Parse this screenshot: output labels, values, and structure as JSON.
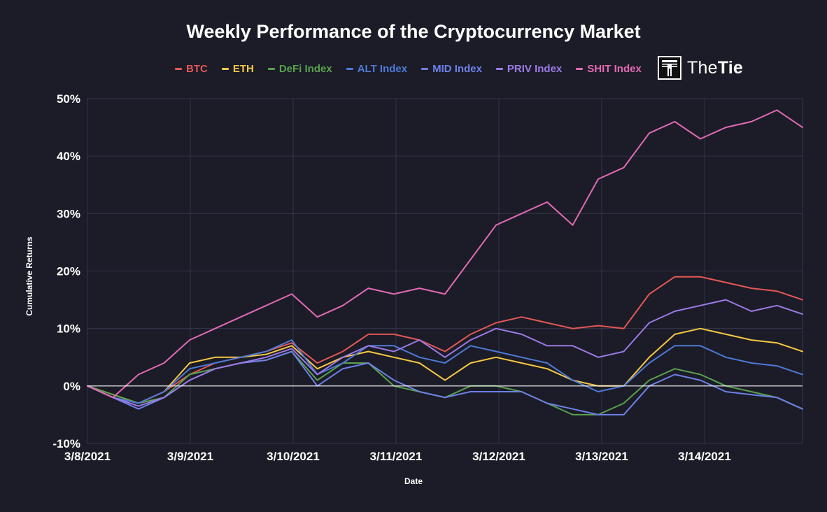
{
  "chart_data": {
    "type": "line",
    "title": "Weekly Performance of the Cryptocurrency Market",
    "xlabel": "Date",
    "ylabel": "Cumulative Returns",
    "x_ticks": [
      "3/8/2021",
      "3/9/2021",
      "3/10/2021",
      "3/11/2021",
      "3/12/2021",
      "3/13/2021",
      "3/14/2021"
    ],
    "x_range": [
      "3/8/2021",
      "3/14/2021 22:00"
    ],
    "y_ticks": [
      "-10%",
      "0%",
      "10%",
      "20%",
      "30%",
      "40%",
      "50%"
    ],
    "ylim": [
      -10,
      50
    ],
    "y_unit": "%",
    "grid": true,
    "zero_line": true,
    "legend_position": "top",
    "x": [
      "3/8 00:00",
      "3/8 06:00",
      "3/8 12:00",
      "3/8 18:00",
      "3/9 00:00",
      "3/9 06:00",
      "3/9 12:00",
      "3/9 18:00",
      "3/10 00:00",
      "3/10 06:00",
      "3/10 12:00",
      "3/10 18:00",
      "3/11 00:00",
      "3/11 06:00",
      "3/11 12:00",
      "3/11 18:00",
      "3/12 00:00",
      "3/12 06:00",
      "3/12 12:00",
      "3/12 18:00",
      "3/13 00:00",
      "3/13 06:00",
      "3/13 12:00",
      "3/13 18:00",
      "3/14 00:00",
      "3/14 06:00",
      "3/14 12:00",
      "3/14 18:00",
      "3/14 22:00"
    ],
    "series": [
      {
        "name": "BTC",
        "color": "#e45756",
        "values": [
          0,
          -2,
          -3,
          -1,
          2,
          4,
          5,
          6,
          7.5,
          4,
          6,
          9,
          9,
          8,
          6,
          9,
          11,
          12,
          11,
          10,
          10.5,
          10,
          16,
          19,
          19,
          18,
          17,
          16.5,
          15
        ]
      },
      {
        "name": "ETH",
        "color": "#f6c744",
        "values": [
          0,
          -1.5,
          -3,
          -1,
          4,
          5,
          5,
          5.5,
          7,
          3,
          5,
          6,
          5,
          4,
          1,
          4,
          5,
          4,
          3,
          1,
          0,
          0,
          5,
          9,
          10,
          9,
          8,
          7.5,
          6
        ]
      },
      {
        "name": "DeFi Index",
        "color": "#59a14f",
        "values": [
          0,
          -1.5,
          -3,
          -2,
          2,
          3,
          4,
          4.5,
          6,
          1,
          4,
          4,
          0,
          -1,
          -2,
          0,
          0,
          -1,
          -3,
          -5,
          -5,
          -3,
          1,
          3,
          2,
          0,
          -1,
          -2,
          -4
        ]
      },
      {
        "name": "ALT Index",
        "color": "#4e79d7",
        "values": [
          0,
          -2,
          -3,
          -1,
          3,
          4,
          5,
          6,
          8,
          2,
          4,
          7,
          7,
          5,
          4,
          7,
          6,
          5,
          4,
          1,
          -1,
          0,
          4,
          7,
          7,
          5,
          4,
          3.5,
          2
        ]
      },
      {
        "name": "MID Index",
        "color": "#6e80e8",
        "values": [
          0,
          -2,
          -4,
          -2,
          1,
          3,
          4,
          4.5,
          6,
          0,
          3,
          4,
          1,
          -1,
          -2,
          -1,
          -1,
          -1,
          -3,
          -4,
          -5,
          -5,
          0,
          2,
          1,
          -1,
          -1.5,
          -2,
          -4
        ]
      },
      {
        "name": "PRIV Index",
        "color": "#9d7ae6",
        "values": [
          0,
          -2,
          -3.5,
          -2,
          1,
          3,
          4,
          5,
          6.5,
          2,
          5,
          7,
          6,
          8,
          5,
          8,
          10,
          9,
          7,
          7,
          5,
          6,
          11,
          13,
          14,
          15,
          13,
          14,
          12.5
        ]
      },
      {
        "name": "SHIT Index",
        "color": "#e26ab4",
        "values": [
          0,
          -2,
          2,
          4,
          8,
          10,
          12,
          14,
          16,
          12,
          14,
          17,
          16,
          17,
          16,
          22,
          28,
          30,
          32,
          28,
          36,
          38,
          44,
          46,
          43,
          45,
          46,
          48,
          45
        ]
      }
    ]
  },
  "logo": {
    "text_light": "The",
    "text_bold": "Tie"
  }
}
